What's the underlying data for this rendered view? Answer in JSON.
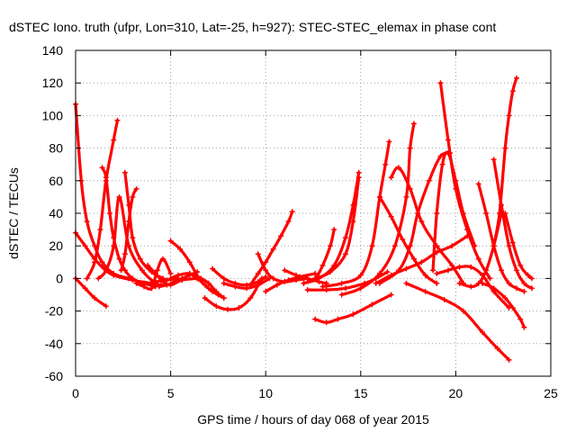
{
  "chart_data": {
    "type": "line",
    "title": "dSTEC Iono. truth (ufpr, Lon=310, Lat=-25, h=927): STEC-STEC_elemax in phase cont",
    "xlabel": "GPS time / hours of day 068 of year 2015",
    "ylabel": "dSTEC  / TECUs",
    "xlim": [
      0,
      25
    ],
    "ylim": [
      -60,
      140
    ],
    "xticks": [
      0,
      5,
      10,
      15,
      20,
      25
    ],
    "yticks": [
      -60,
      -40,
      -20,
      0,
      20,
      40,
      60,
      80,
      100,
      120,
      140
    ],
    "grid": true,
    "legend": "none",
    "color": "#ff0000",
    "series": [
      {
        "x": [
          0.0,
          0.3,
          0.6,
          1.0,
          1.4,
          2.0,
          2.8,
          3.6,
          4.2
        ],
        "y": [
          107,
          60,
          35,
          20,
          10,
          3,
          0,
          -3,
          -5
        ]
      },
      {
        "x": [
          0.0,
          0.5,
          1.0,
          1.6
        ],
        "y": [
          0,
          -6,
          -12,
          -17
        ]
      },
      {
        "x": [
          0.0,
          0.5,
          1.0,
          1.5,
          2.0,
          3.0,
          4.0,
          4.5
        ],
        "y": [
          28,
          20,
          12,
          6,
          2,
          -1,
          -3,
          -4
        ]
      },
      {
        "x": [
          1.2,
          1.6,
          2.0,
          2.3,
          2.8,
          3.5,
          4.2
        ],
        "y": [
          0,
          5,
          20,
          50,
          20,
          5,
          -3
        ]
      },
      {
        "x": [
          0.6,
          1.0,
          1.3,
          1.6,
          2.0,
          2.2
        ],
        "y": [
          0,
          10,
          30,
          60,
          85,
          97
        ]
      },
      {
        "x": [
          1.4,
          1.6,
          1.8,
          2.0,
          2.3,
          2.6,
          3.0,
          3.6,
          4.2,
          4.8,
          5.4
        ],
        "y": [
          68,
          62,
          40,
          25,
          12,
          5,
          0,
          -3,
          -2,
          -1,
          0
        ]
      },
      {
        "x": [
          2.6,
          2.8,
          3.0,
          3.4,
          4.0,
          4.6
        ],
        "y": [
          65,
          45,
          25,
          12,
          4,
          0
        ]
      },
      {
        "x": [
          2.4,
          2.6,
          2.8,
          3.0,
          3.2
        ],
        "y": [
          5,
          15,
          35,
          50,
          55
        ]
      },
      {
        "x": [
          3.2,
          3.6,
          4.0,
          4.3,
          4.6,
          5.0
        ],
        "y": [
          -3,
          -5,
          -6,
          5,
          12,
          3
        ]
      },
      {
        "x": [
          3.8,
          4.2,
          4.6,
          5.0,
          5.6,
          6.4
        ],
        "y": [
          8,
          3,
          -2,
          -4,
          -1,
          0
        ]
      },
      {
        "x": [
          4.4,
          4.8,
          5.2,
          5.6,
          6.0,
          6.4
        ],
        "y": [
          -5,
          -4,
          -2,
          0,
          2,
          4
        ]
      },
      {
        "x": [
          5.0,
          5.4,
          6.0,
          6.6,
          7.0,
          7.4,
          7.8
        ],
        "y": [
          0,
          2,
          3,
          0,
          -3,
          -8,
          -12
        ]
      },
      {
        "x": [
          5.0,
          5.5,
          6.0,
          6.5,
          7.0,
          7.5
        ],
        "y": [
          23,
          18,
          10,
          0,
          -6,
          -10
        ]
      },
      {
        "x": [
          6.0,
          6.4,
          6.8,
          7.2,
          7.8
        ],
        "y": [
          3,
          0,
          -4,
          -8,
          -12
        ]
      },
      {
        "x": [
          6.8,
          7.4,
          8.0,
          8.6,
          9.2,
          9.8
        ],
        "y": [
          -12,
          -17,
          -19,
          -18,
          -12,
          0
        ]
      },
      {
        "x": [
          7.2,
          7.8,
          8.4,
          9.0,
          9.6,
          10.0
        ],
        "y": [
          6,
          0,
          -3,
          -4,
          -2,
          1
        ]
      },
      {
        "x": [
          7.8,
          8.4,
          9.0,
          9.6,
          10.2
        ],
        "y": [
          -3,
          -5,
          -6,
          -4,
          0
        ]
      },
      {
        "x": [
          9.2,
          9.6,
          10.0,
          10.4,
          10.8,
          11.2,
          11.4
        ],
        "y": [
          -4,
          3,
          10,
          18,
          26,
          35,
          41
        ]
      },
      {
        "x": [
          9.6,
          10.0,
          10.4,
          11.0,
          11.6,
          12.2
        ],
        "y": [
          15,
          5,
          0,
          -2,
          -1,
          0
        ]
      },
      {
        "x": [
          10.0,
          10.6,
          11.2,
          11.8,
          12.6
        ],
        "y": [
          -8,
          -4,
          -1,
          1,
          3
        ]
      },
      {
        "x": [
          11.0,
          11.6,
          12.2,
          12.8,
          13.2
        ],
        "y": [
          5,
          2,
          0,
          -2,
          -3
        ]
      },
      {
        "x": [
          12.0,
          12.6,
          13.0,
          13.4,
          13.6
        ],
        "y": [
          -3,
          0,
          8,
          20,
          30
        ]
      },
      {
        "x": [
          12.0,
          12.8,
          13.6,
          14.2,
          14.6,
          14.9
        ],
        "y": [
          -3,
          0,
          8,
          25,
          45,
          65
        ]
      },
      {
        "x": [
          12.6,
          13.4,
          14.2,
          14.6,
          14.9
        ],
        "y": [
          0,
          4,
          15,
          35,
          62
        ]
      },
      {
        "x": [
          12.2,
          13.2,
          14.2,
          15.2,
          15.8,
          16.4
        ],
        "y": [
          -7,
          -7,
          -6,
          -3,
          0,
          4
        ]
      },
      {
        "x": [
          12.6,
          13.2,
          13.8,
          14.6,
          15.6,
          16.6
        ],
        "y": [
          -25,
          -27,
          -25,
          -22,
          -16,
          -10
        ]
      },
      {
        "x": [
          13.0,
          14.0,
          15.0,
          15.6,
          16.0,
          16.3,
          16.5
        ],
        "y": [
          -5,
          -3,
          2,
          20,
          50,
          70,
          84
        ]
      },
      {
        "x": [
          14.0,
          15.0,
          16.0,
          16.8,
          17.4,
          17.6,
          17.8
        ],
        "y": [
          -10,
          -6,
          3,
          20,
          50,
          80,
          95
        ]
      },
      {
        "x": [
          16.0,
          16.6,
          17.2,
          17.8,
          18.4,
          19.0
        ],
        "y": [
          50,
          38,
          24,
          12,
          2,
          -3
        ]
      },
      {
        "x": [
          16.0,
          17.0,
          17.6,
          18.0,
          18.6,
          19.2,
          19.7
        ],
        "y": [
          -3,
          5,
          20,
          40,
          60,
          75,
          77
        ]
      },
      {
        "x": [
          16.6,
          17.0,
          17.6,
          18.2,
          19.0,
          19.8,
          20.4
        ],
        "y": [
          62,
          68,
          55,
          35,
          20,
          8,
          -3
        ]
      },
      {
        "x": [
          18.8,
          19.0,
          19.3,
          19.6,
          20.0,
          20.4,
          21.0
        ],
        "y": [
          5,
          40,
          70,
          77,
          60,
          40,
          20
        ]
      },
      {
        "x": [
          19.2,
          19.6,
          20.0,
          20.6,
          21.2,
          21.8
        ],
        "y": [
          120,
          85,
          55,
          30,
          12,
          0
        ]
      },
      {
        "x": [
          15.8,
          16.6,
          17.4,
          18.2,
          19.0,
          19.8,
          20.6
        ],
        "y": [
          -3,
          2,
          6,
          10,
          16,
          20,
          26
        ]
      },
      {
        "x": [
          19.0,
          19.6,
          20.2,
          20.8,
          21.4,
          22.0,
          22.8
        ],
        "y": [
          3,
          5,
          7,
          7,
          2,
          -8,
          -18
        ]
      },
      {
        "x": [
          17.4,
          18.4,
          19.4,
          20.4,
          21.4,
          22.2,
          22.8
        ],
        "y": [
          -3,
          -8,
          -13,
          -20,
          -33,
          -43,
          -50
        ]
      },
      {
        "x": [
          20.2,
          20.8,
          21.2,
          21.6,
          22.0,
          22.4
        ],
        "y": [
          -3,
          -5,
          -3,
          5,
          20,
          40
        ]
      },
      {
        "x": [
          21.2,
          21.6,
          22.0,
          22.4,
          22.8,
          23.2,
          23.6
        ],
        "y": [
          58,
          40,
          20,
          5,
          -3,
          -6,
          -8
        ]
      },
      {
        "x": [
          22.0,
          22.4,
          22.8,
          23.2,
          23.6,
          24.0
        ],
        "y": [
          73,
          45,
          20,
          5,
          -3,
          -6
        ]
      },
      {
        "x": [
          22.6,
          23.0,
          23.4,
          23.8,
          24.0
        ],
        "y": [
          40,
          22,
          8,
          2,
          0
        ]
      },
      {
        "x": [
          22.0,
          22.3,
          22.6,
          22.8,
          23.0,
          23.2
        ],
        "y": [
          20,
          40,
          80,
          100,
          115,
          123
        ]
      },
      {
        "x": [
          21.4,
          22.0,
          22.6,
          23.0,
          23.4,
          23.6
        ],
        "y": [
          -3,
          -6,
          -12,
          -18,
          -25,
          -30
        ]
      }
    ]
  }
}
